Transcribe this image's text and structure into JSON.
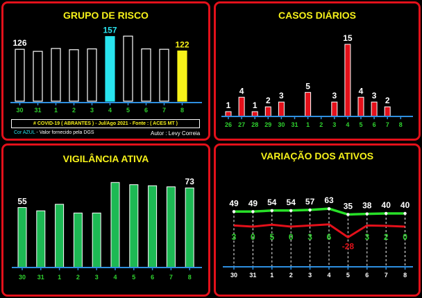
{
  "colors": {
    "border": "#e3101a",
    "title": "#f7f21a",
    "axis": "#2e8fe0",
    "green_label": "#2fd22f",
    "bar_white_stroke": "#ffffff",
    "highlight_cyan": "#29e3ee",
    "highlight_yellow": "#f7f21a",
    "bar_red": "#e3101a",
    "bar_green": "#1db954",
    "line_green": "#28e028",
    "line_red": "#e3101a"
  },
  "panels": {
    "risk": {
      "title": "GRUPO DE RISCO",
      "banner": "# COVID-19  ( ABRANTES )  - Jul/Ago  2021   -  Fonte : ( ACES MT )",
      "note_color_word": "Cor AZUL",
      "note_rest": " - Valor fornecido pela DGS",
      "author": "Autor : Levy Correia"
    },
    "daily": {
      "title": "CASOS DIÁRIOS"
    },
    "vigilance": {
      "title": "VIGILÂNCIA ATIVA"
    },
    "variation": {
      "title": "VARIAÇÃO DOS ATIVOS"
    }
  },
  "chart_data": [
    {
      "id": "risk",
      "type": "bar",
      "title": "GRUPO DE RISCO",
      "categories": [
        "30",
        "31",
        "1",
        "2",
        "3",
        "4",
        "5",
        "6",
        "7",
        "8"
      ],
      "values": [
        126,
        121,
        128,
        125,
        127,
        157,
        158,
        127,
        126,
        122
      ],
      "data_labels": {
        "0": "126",
        "5": "157",
        "9": "122"
      },
      "highlight": {
        "5": "cyan",
        "9": "yellow"
      },
      "ylim": [
        0,
        170
      ]
    },
    {
      "id": "daily",
      "type": "bar",
      "title": "CASOS DIÁRIOS",
      "categories": [
        "26",
        "27",
        "28",
        "29",
        "30",
        "31",
        "1",
        "2",
        "3",
        "4",
        "5",
        "6",
        "7",
        "8"
      ],
      "values": [
        1,
        4,
        1,
        2,
        3,
        0,
        5,
        0,
        3,
        15,
        4,
        3,
        2,
        0
      ],
      "ylim": [
        0,
        16
      ]
    },
    {
      "id": "vigilance",
      "type": "bar",
      "title": "VIGILÂNCIA ATIVA",
      "categories": [
        "30",
        "31",
        "1",
        "2",
        "3",
        "4",
        "5",
        "6",
        "7",
        "8"
      ],
      "values": [
        55,
        52,
        58,
        50,
        50,
        78,
        76,
        75,
        74,
        73
      ],
      "data_labels": {
        "0": "55",
        "9": "73"
      },
      "ylim": [
        0,
        82
      ]
    },
    {
      "id": "variation",
      "type": "line",
      "title": "VARIAÇÃO DOS ATIVOS",
      "categories": [
        "30",
        "31",
        "1",
        "2",
        "3",
        "4",
        "5",
        "6",
        "7",
        "8"
      ],
      "series": [
        {
          "values": [
            49,
            49,
            54,
            54,
            57,
            63,
            35,
            38,
            40,
            40
          ]
        },
        {
          "values": [
            3,
            0,
            5,
            0,
            3,
            6,
            -28,
            3,
            2,
            0
          ]
        }
      ]
    }
  ]
}
